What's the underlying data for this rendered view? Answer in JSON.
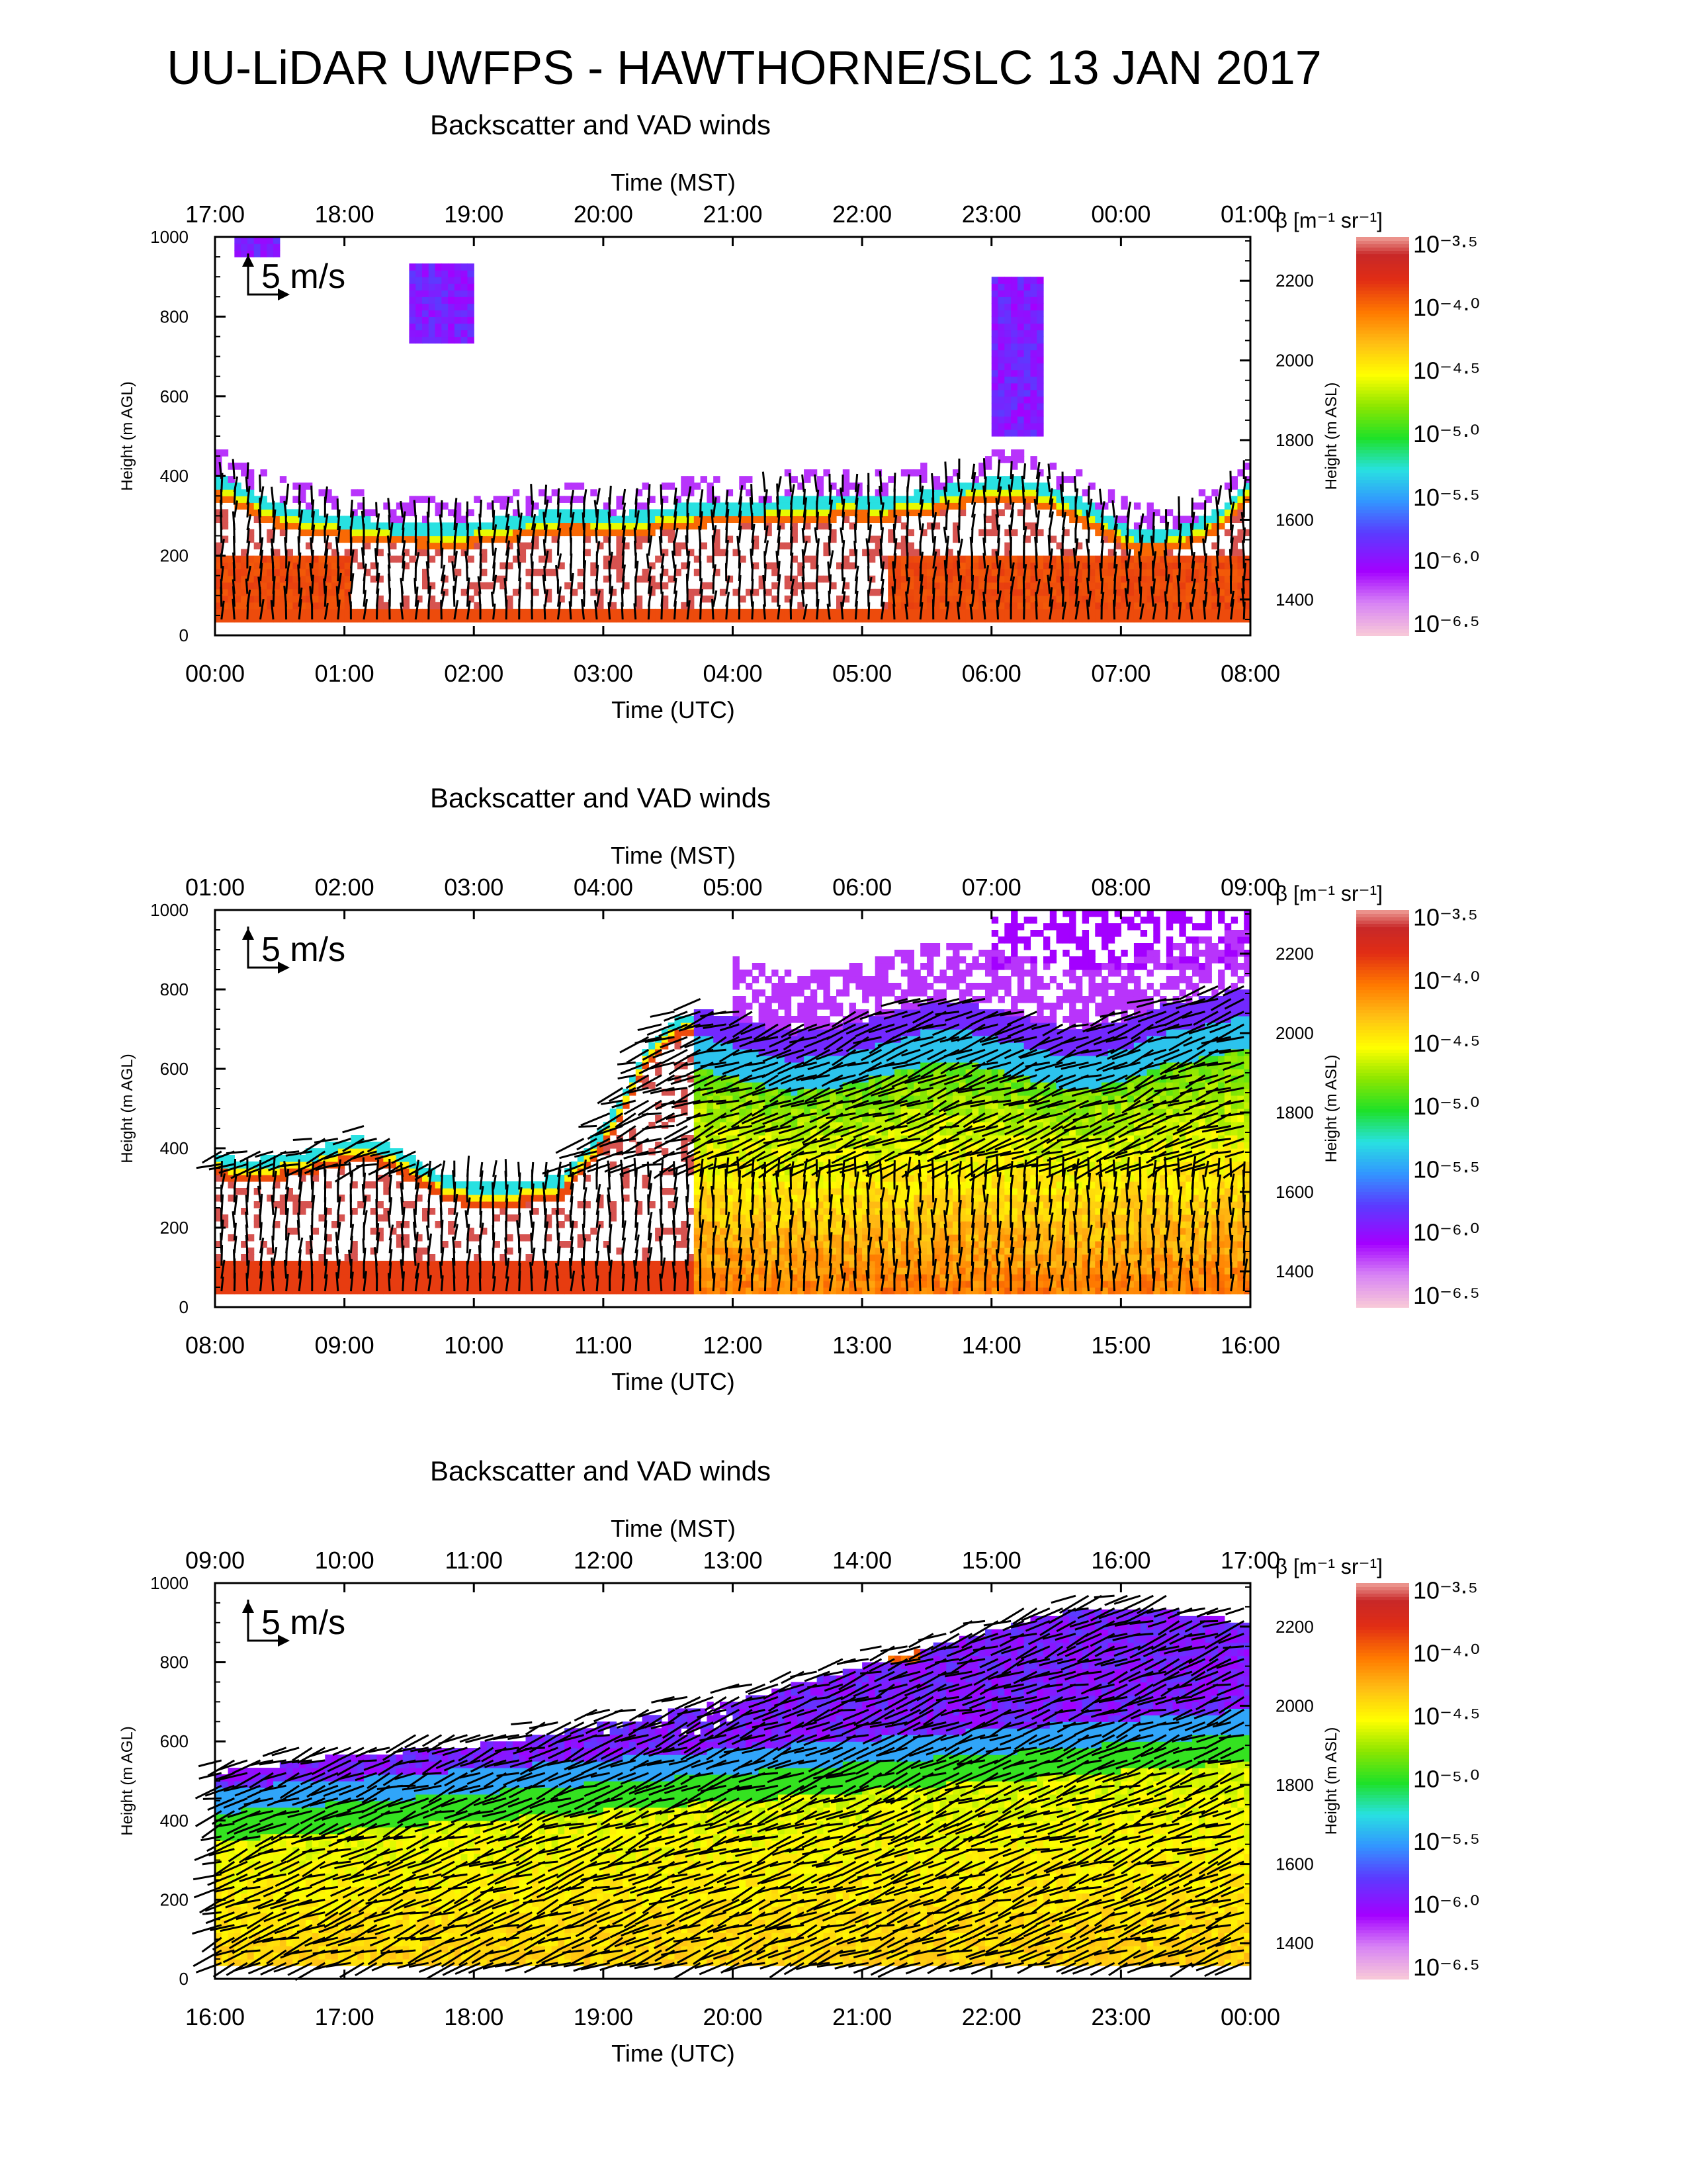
{
  "page_title": "UU-LiDAR UWFPS - HAWTHORNE/SLC 13 JAN 2017",
  "colorbar": {
    "label": "β [m⁻¹ sr⁻¹]",
    "tick_labels": [
      "10⁻³·⁵",
      "10⁻⁴·⁰",
      "10⁻⁴·⁵",
      "10⁻⁵·⁰",
      "10⁻⁵·⁵",
      "10⁻⁶·⁰",
      "10⁻⁶·⁵"
    ],
    "tick_values_log10": [
      -3.5,
      -4.0,
      -4.5,
      -5.0,
      -5.5,
      -6.0,
      -6.5
    ],
    "colors": [
      "#f7c7d9",
      "#a300ff",
      "#6a3cff",
      "#3aa0ff",
      "#2ee6e6",
      "#1ee61e",
      "#8ae600",
      "#ffff00",
      "#ffc000",
      "#ff7a00",
      "#e53010",
      "#c82828",
      "#f2a8a0"
    ]
  },
  "chart_data": [
    {
      "type": "heatmap",
      "title": "Backscatter and VAD winds",
      "xlabel": "Time (UTC)",
      "x2label": "Time (MST)",
      "ylabel": "Height (m AGL)",
      "y2label": "Height (m ASL)",
      "x_ticks": [
        "00:00",
        "01:00",
        "02:00",
        "03:00",
        "04:00",
        "05:00",
        "06:00",
        "07:00",
        "08:00"
      ],
      "x2_ticks": [
        "17:00",
        "18:00",
        "19:00",
        "20:00",
        "21:00",
        "22:00",
        "23:00",
        "00:00",
        "01:00"
      ],
      "y_ticks": [
        0,
        200,
        400,
        600,
        800,
        1000
      ],
      "ylim": [
        0,
        1000
      ],
      "y2_ticks": [
        1400,
        1600,
        1800,
        2000,
        2200
      ],
      "y2lim": [
        1310,
        2310
      ],
      "scale_arrow_label": "5 m/s",
      "aerosol_top_m": [
        390,
        360,
        320,
        300,
        290,
        280,
        270,
        270,
        260,
        270,
        280,
        290,
        300,
        300,
        290,
        300,
        310,
        320,
        320,
        320,
        330,
        330,
        340,
        330,
        340,
        350,
        370,
        380,
        380,
        360,
        330,
        290,
        250,
        250,
        270,
        310,
        380
      ]
    },
    {
      "type": "heatmap",
      "title": "Backscatter and VAD winds",
      "xlabel": "Time (UTC)",
      "x2label": "Time (MST)",
      "ylabel": "Height (m AGL)",
      "y2label": "Height (m ASL)",
      "x_ticks": [
        "08:00",
        "09:00",
        "10:00",
        "11:00",
        "12:00",
        "13:00",
        "14:00",
        "15:00",
        "16:00"
      ],
      "x2_ticks": [
        "01:00",
        "02:00",
        "03:00",
        "04:00",
        "05:00",
        "06:00",
        "07:00",
        "08:00",
        "09:00"
      ],
      "y_ticks": [
        0,
        200,
        400,
        600,
        800,
        1000
      ],
      "ylim": [
        0,
        1000
      ],
      "y2_ticks": [
        1400,
        1600,
        1800,
        2000,
        2200
      ],
      "y2lim": [
        1310,
        2310
      ],
      "scale_arrow_label": "5 m/s",
      "aerosol_top_m": [
        380,
        360,
        370,
        380,
        400,
        420,
        400,
        360,
        320,
        300,
        300,
        310,
        320,
        400,
        500,
        650,
        720,
        740,
        720,
        700,
        680,
        690,
        700,
        720,
        740,
        760,
        760,
        740,
        720,
        700,
        690,
        700,
        720,
        750,
        760,
        780,
        800
      ]
    },
    {
      "type": "heatmap",
      "title": "Backscatter and VAD winds",
      "xlabel": "Time (UTC)",
      "x2label": "Time (MST)",
      "ylabel": "Height (m AGL)",
      "y2label": "Height (m ASL)",
      "x_ticks": [
        "16:00",
        "17:00",
        "18:00",
        "19:00",
        "20:00",
        "21:00",
        "22:00",
        "23:00",
        "00:00"
      ],
      "x2_ticks": [
        "09:00",
        "10:00",
        "11:00",
        "12:00",
        "13:00",
        "14:00",
        "15:00",
        "16:00",
        "17:00"
      ],
      "y_ticks": [
        0,
        200,
        400,
        600,
        800,
        1000
      ],
      "ylim": [
        0,
        1000
      ],
      "y2_ticks": [
        1400,
        1600,
        1800,
        2000,
        2200
      ],
      "y2lim": [
        1310,
        2310
      ],
      "scale_arrow_label": "5 m/s",
      "aerosol_top_m": [
        520,
        530,
        540,
        550,
        560,
        560,
        570,
        580,
        580,
        590,
        600,
        610,
        620,
        640,
        650,
        660,
        680,
        690,
        700,
        720,
        740,
        760,
        780,
        800,
        820,
        840,
        860,
        880,
        900,
        920,
        930,
        940,
        940,
        930,
        920,
        910,
        900
      ]
    }
  ]
}
